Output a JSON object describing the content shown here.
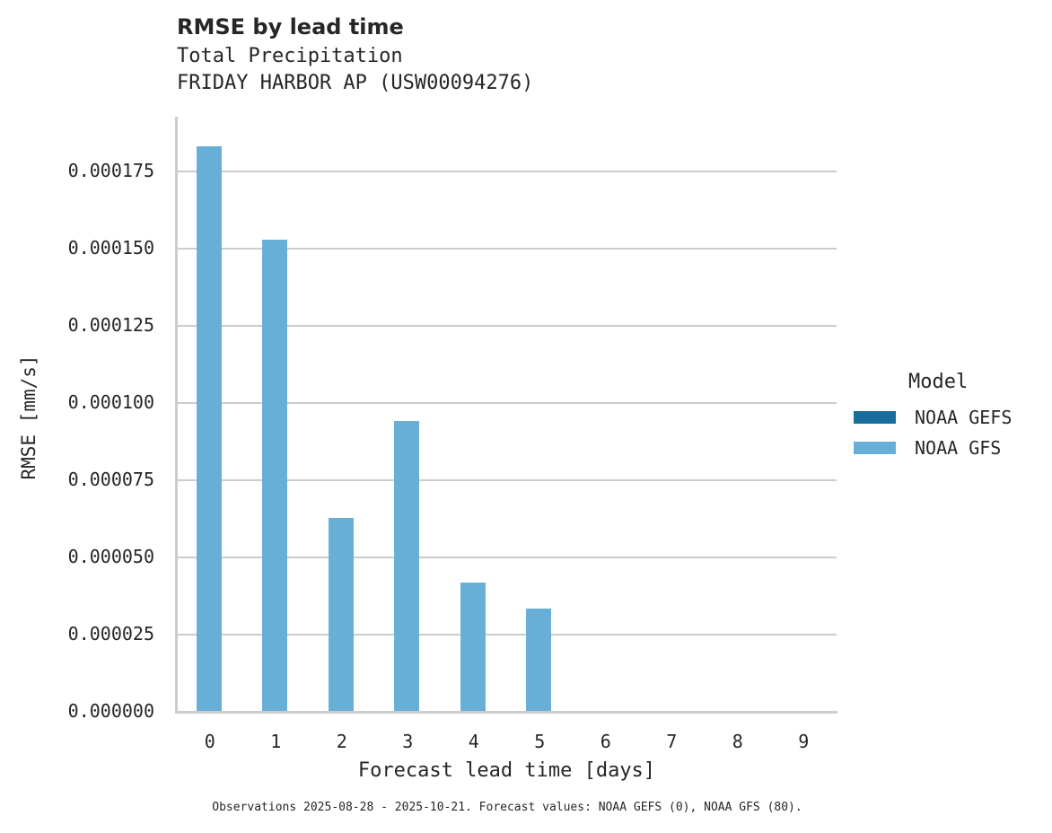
{
  "header": {
    "title": "RMSE by lead time",
    "subtitle_line1": "Total Precipitation",
    "subtitle_line2": "FRIDAY HARBOR AP (USW00094276)"
  },
  "axes": {
    "ylabel": "RMSE [mm/s]",
    "xlabel": "Forecast lead time [days]",
    "yticks": [
      "0.000000",
      "0.000025",
      "0.000050",
      "0.000075",
      "0.000100",
      "0.000125",
      "0.000150",
      "0.000175"
    ],
    "xticks": [
      "0",
      "1",
      "2",
      "3",
      "4",
      "5",
      "6",
      "7",
      "8",
      "9"
    ]
  },
  "legend": {
    "title": "Model",
    "items": [
      {
        "label": "NOAA GEFS",
        "color": "#176d9c"
      },
      {
        "label": "NOAA GFS",
        "color": "#67afd7"
      }
    ]
  },
  "footer": "Observations 2025-08-28 - 2025-10-21. Forecast values: NOAA GEFS (0), NOAA GFS (80).",
  "chart_data": {
    "type": "bar",
    "title": "RMSE by lead time",
    "subtitle": "Total Precipitation — FRIDAY HARBOR AP (USW00094276)",
    "xlabel": "Forecast lead time [days]",
    "ylabel": "RMSE [mm/s]",
    "categories": [
      "0",
      "1",
      "2",
      "3",
      "4",
      "5",
      "6",
      "7",
      "8",
      "9"
    ],
    "series": [
      {
        "name": "NOAA GEFS",
        "color": "#176d9c",
        "values": [
          null,
          null,
          null,
          null,
          null,
          null,
          null,
          null,
          null,
          null
        ]
      },
      {
        "name": "NOAA GFS",
        "color": "#67afd7",
        "values": [
          0.000183,
          0.000153,
          6.28e-05,
          9.42e-05,
          4.19e-05,
          3.34e-05,
          null,
          null,
          null,
          null
        ]
      }
    ],
    "ylim": [
      0,
      0.000193
    ],
    "yticks": [
      0,
      2.5e-05,
      5e-05,
      7.5e-05,
      0.0001,
      0.000125,
      0.00015,
      0.000175
    ],
    "grid": "horizontal",
    "legend_position": "right",
    "legend_title": "Model",
    "annotation": "Observations 2025-08-28 - 2025-10-21. Forecast values: NOAA GEFS (0), NOAA GFS (80)."
  }
}
